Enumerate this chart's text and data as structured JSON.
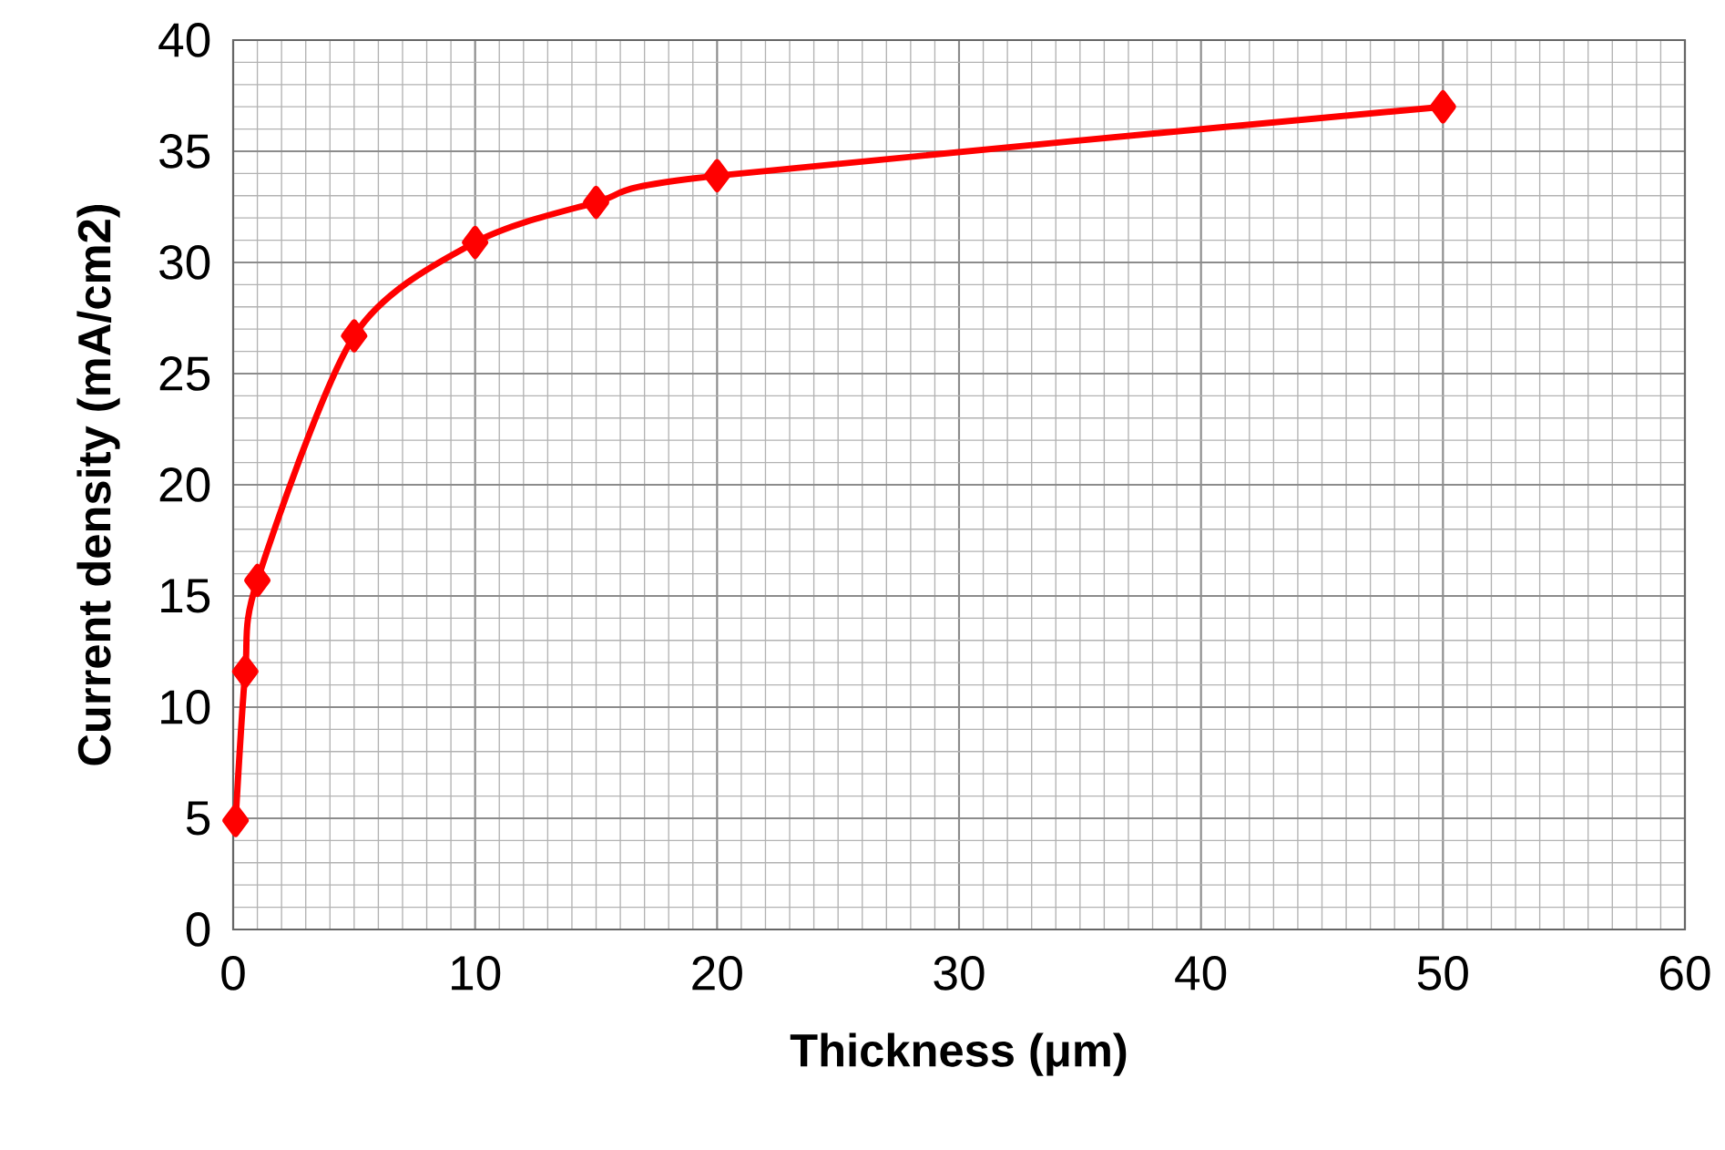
{
  "chart_data": {
    "type": "line",
    "xlabel": "Thickness (μm)",
    "ylabel": "Current density (mA/cm2)",
    "x": [
      0.1,
      0.5,
      1,
      5,
      10,
      15,
      20,
      50
    ],
    "series": [
      {
        "color": "#ff0000",
        "values": [
          4.9,
          11.6,
          15.7,
          26.7,
          30.9,
          32.7,
          33.9,
          37.0
        ]
      }
    ],
    "xlim": [
      0,
      60
    ],
    "ylim": [
      0,
      40
    ],
    "xticks": [
      0,
      10,
      20,
      30,
      40,
      50,
      60
    ],
    "yticks": [
      0,
      5,
      10,
      15,
      20,
      25,
      30,
      35,
      40
    ],
    "grid": true,
    "marker": "diamond",
    "line_style": "solid"
  }
}
